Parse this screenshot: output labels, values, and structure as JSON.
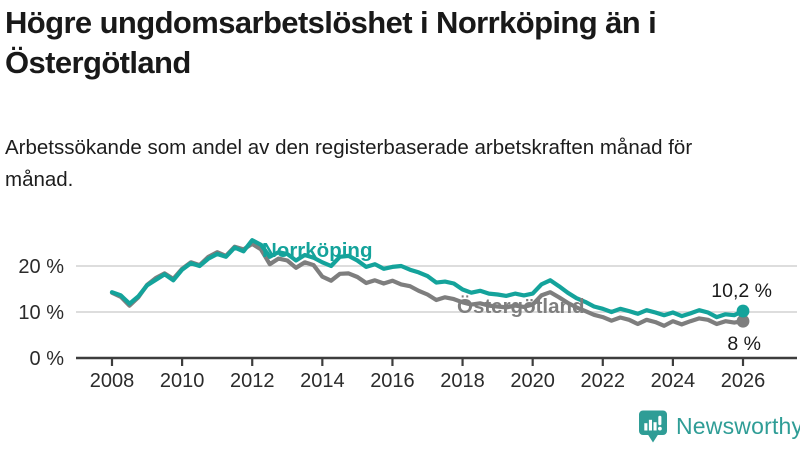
{
  "title": "Högre ungdomsarbetslöshet i Norrköping än i Östergötland",
  "subtitle": "Arbetssökande som andel av den registerbaserade arbetskraften månad för månad.",
  "branding": {
    "wordmark": "Newsworthy",
    "icon": "bar-chart-speech-bubble-icon",
    "brand_color": "#2f9d96"
  },
  "colors": {
    "norrkoping_teal": "#14a39b",
    "ostergotland_gray": "#7e7e7e",
    "gridline": "#d8d8d8",
    "axis": "#3d3d3d",
    "text": "#191919"
  },
  "chart_data": {
    "type": "line",
    "title": "",
    "xlabel": "",
    "ylabel": "",
    "grid": "horizontal-light",
    "legend_position": "inline-labels-on-lines",
    "ylim": [
      0,
      27.5
    ],
    "xlim": [
      2007.0,
      2027.6
    ],
    "x": [
      2008,
      2008.25,
      2008.5,
      2008.75,
      2009,
      2009.25,
      2009.5,
      2009.75,
      2010,
      2010.25,
      2010.5,
      2010.75,
      2011,
      2011.25,
      2011.5,
      2011.75,
      2012,
      2012.25,
      2012.5,
      2012.75,
      2013,
      2013.25,
      2013.5,
      2013.75,
      2014,
      2014.25,
      2014.5,
      2014.75,
      2015,
      2015.25,
      2015.5,
      2015.75,
      2016,
      2016.25,
      2016.5,
      2016.75,
      2017,
      2017.25,
      2017.5,
      2017.75,
      2018,
      2018.25,
      2018.5,
      2018.75,
      2019,
      2019.25,
      2019.5,
      2019.75,
      2020,
      2020.25,
      2020.5,
      2020.75,
      2021,
      2021.25,
      2021.5,
      2021.75,
      2022,
      2022.25,
      2022.5,
      2022.75,
      2023,
      2023.25,
      2023.5,
      2023.75,
      2024,
      2024.25,
      2024.5,
      2024.75,
      2025,
      2025.25,
      2025.5,
      2025.75,
      2026
    ],
    "series": [
      {
        "name": "Norrköping",
        "color": "#14a39b",
        "end_label": "10,2 %",
        "end_value": 10.2,
        "values": [
          14.3,
          13.6,
          11.8,
          13.4,
          15.8,
          17.0,
          18.2,
          16.9,
          19.2,
          20.6,
          20.0,
          21.6,
          22.6,
          22.0,
          24.0,
          23.2,
          25.6,
          24.6,
          22.0,
          23.0,
          22.6,
          21.2,
          22.4,
          21.8,
          20.8,
          20.0,
          22.0,
          22.2,
          21.2,
          19.8,
          20.4,
          19.4,
          19.8,
          20.0,
          19.2,
          18.6,
          17.8,
          16.4,
          16.6,
          16.2,
          14.9,
          14.2,
          14.6,
          14.0,
          13.8,
          13.5,
          14.0,
          13.6,
          14.0,
          16.0,
          16.9,
          15.6,
          14.2,
          13.0,
          12.2,
          11.2,
          10.7,
          10.0,
          10.7,
          10.2,
          9.6,
          10.4,
          9.9,
          9.3,
          9.9,
          9.1,
          9.7,
          10.4,
          9.9,
          8.9,
          9.5,
          9.3,
          10.2
        ]
      },
      {
        "name": "Östergötland",
        "color": "#7e7e7e",
        "end_label": "8 %",
        "end_value": 8.0,
        "values": [
          14.2,
          13.3,
          11.4,
          13.2,
          15.9,
          17.4,
          18.4,
          17.2,
          19.4,
          20.8,
          20.2,
          22.0,
          23.0,
          22.2,
          24.2,
          23.6,
          24.8,
          23.6,
          20.4,
          21.6,
          21.2,
          19.6,
          20.8,
          20.2,
          17.7,
          16.8,
          18.3,
          18.4,
          17.6,
          16.3,
          16.9,
          16.2,
          16.8,
          16.0,
          15.6,
          14.6,
          13.8,
          12.6,
          13.2,
          12.8,
          12.1,
          11.6,
          11.9,
          11.4,
          11.2,
          11.0,
          11.4,
          11.1,
          11.6,
          13.6,
          14.3,
          13.2,
          12.0,
          11.0,
          10.2,
          9.4,
          8.9,
          8.1,
          8.8,
          8.3,
          7.4,
          8.3,
          7.8,
          7.0,
          8.0,
          7.3,
          8.0,
          8.6,
          8.3,
          7.4,
          8.0,
          7.7,
          8.0
        ]
      }
    ],
    "yticks": [
      {
        "v": 0,
        "label": "0 %"
      },
      {
        "v": 10,
        "label": "10 %"
      },
      {
        "v": 20,
        "label": "20 %"
      }
    ],
    "xticks": [
      {
        "v": 2008,
        "label": "2008"
      },
      {
        "v": 2010,
        "label": "2010"
      },
      {
        "v": 2012,
        "label": "2012"
      },
      {
        "v": 2014,
        "label": "2014"
      },
      {
        "v": 2016,
        "label": "2016"
      },
      {
        "v": 2018,
        "label": "2018"
      },
      {
        "v": 2020,
        "label": "2020"
      },
      {
        "v": 2022,
        "label": "2022"
      },
      {
        "v": 2024,
        "label": "2024"
      },
      {
        "v": 2026,
        "label": "2026"
      }
    ]
  }
}
